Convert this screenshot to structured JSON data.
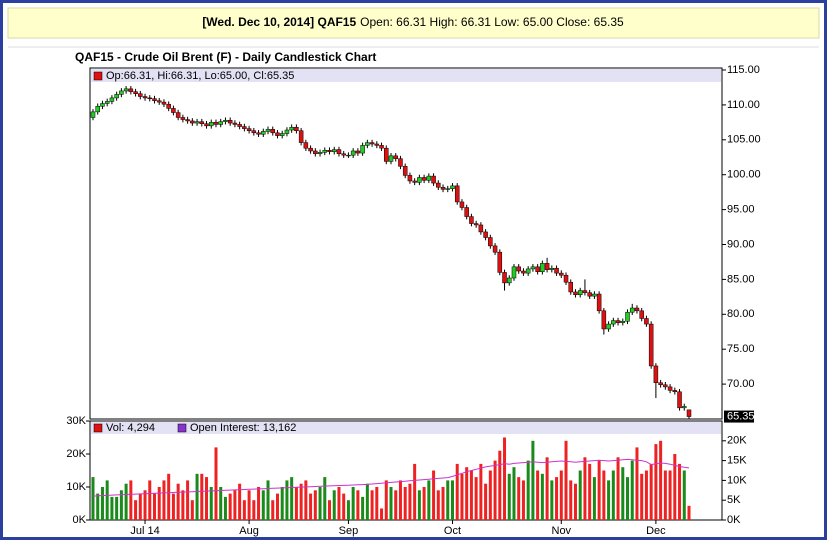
{
  "header": {
    "symbol": "[Wed. Dec 10, 2014] QAF15",
    "quote": "Open: 66.31 High: 66.31 Low: 65.00 Close: 65.35"
  },
  "chart_data": [
    {
      "type": "candlestick",
      "title": "QAF15 - Crude Oil Brent (F) - Daily Candlestick Chart",
      "legend": "Op:66.31, Hi:66.31, Lo:65.00, Cl:65.35",
      "up_color": "#22cc22",
      "down_color": "#dd1111",
      "legend_color": "#dd1111",
      "open": [
        108.2,
        109.0,
        109.8,
        110.2,
        110.5,
        111.0,
        111.5,
        112.0,
        112.3,
        111.9,
        111.6,
        111.2,
        111.0,
        110.9,
        110.6,
        110.4,
        110.1,
        109.5,
        108.9,
        108.2,
        107.9,
        107.7,
        107.4,
        107.6,
        107.3,
        107.0,
        107.5,
        107.2,
        107.6,
        107.8,
        107.4,
        107.2,
        106.9,
        106.6,
        106.3,
        106.0,
        105.8,
        106.2,
        106.5,
        106.0,
        105.6,
        105.9,
        106.4,
        106.8,
        106.3,
        104.6,
        103.8,
        103.4,
        103.0,
        103.2,
        103.5,
        103.3,
        103.6,
        103.0,
        102.8,
        102.8,
        103.4,
        103.1,
        104.2,
        104.6,
        104.4,
        104.2,
        103.8,
        101.9,
        102.7,
        102.3,
        101.2,
        99.9,
        99.1,
        98.9,
        99.6,
        99.2,
        99.8,
        98.8,
        98.2,
        97.9,
        98.0,
        98.4,
        96.1,
        95.3,
        94.0,
        93.0,
        92.8,
        91.8,
        91.0,
        89.8,
        88.9,
        86.0,
        84.5,
        85.2,
        86.8,
        86.2,
        85.9,
        86.5,
        86.8,
        86.1,
        87.3,
        86.4,
        86.6,
        85.9,
        85.6,
        84.6,
        83.2,
        82.8,
        83.4,
        83.1,
        82.6,
        82.9,
        80.5,
        77.9,
        78.6,
        79.1,
        78.8,
        79.0,
        80.3,
        80.9,
        80.5,
        79.4,
        78.6,
        72.6,
        70.2,
        69.9,
        69.6,
        69.1,
        68.9,
        66.6,
        66.31
      ],
      "high": [
        109.4,
        110.2,
        110.6,
        110.9,
        111.4,
        111.9,
        112.4,
        112.7,
        112.7,
        112.3,
        112.0,
        111.6,
        111.4,
        111.3,
        111.0,
        110.8,
        110.5,
        109.9,
        109.3,
        108.6,
        108.3,
        108.1,
        108.0,
        108.0,
        107.7,
        107.9,
        107.9,
        108.0,
        108.2,
        108.2,
        107.8,
        107.6,
        107.3,
        107.0,
        106.7,
        106.4,
        106.6,
        106.9,
        106.9,
        106.4,
        106.3,
        106.8,
        107.2,
        107.2,
        106.7,
        105.0,
        104.2,
        103.8,
        103.6,
        103.9,
        103.9,
        104.0,
        104.0,
        103.4,
        103.2,
        103.8,
        103.8,
        104.6,
        105.0,
        105.0,
        104.8,
        104.6,
        104.2,
        103.1,
        103.1,
        102.7,
        101.6,
        100.3,
        99.5,
        100.0,
        100.0,
        100.2,
        100.2,
        99.2,
        98.6,
        98.4,
        98.8,
        98.8,
        96.5,
        95.7,
        94.4,
        93.4,
        93.2,
        92.2,
        91.4,
        90.2,
        89.3,
        86.4,
        85.6,
        87.2,
        87.2,
        86.6,
        86.9,
        87.2,
        87.2,
        87.7,
        88.1,
        87.0,
        87.0,
        86.3,
        86.0,
        85.0,
        83.6,
        83.8,
        85.0,
        83.5,
        83.3,
        83.3,
        80.9,
        79.0,
        79.5,
        79.5,
        79.4,
        80.7,
        81.5,
        81.3,
        80.9,
        79.8,
        79.0,
        73.0,
        70.6,
        70.3,
        70.0,
        69.5,
        69.3,
        67.2,
        66.31
      ],
      "low": [
        107.8,
        108.6,
        109.4,
        109.8,
        110.1,
        110.6,
        111.1,
        111.6,
        111.5,
        111.2,
        110.8,
        110.6,
        110.5,
        110.2,
        110.0,
        109.7,
        109.1,
        108.5,
        107.8,
        107.5,
        107.3,
        107.0,
        107.0,
        106.9,
        106.6,
        106.6,
        106.8,
        106.8,
        107.2,
        107.0,
        106.8,
        106.5,
        106.2,
        105.9,
        105.6,
        105.4,
        105.4,
        105.8,
        105.6,
        105.2,
        105.2,
        105.5,
        106.0,
        105.9,
        104.2,
        103.4,
        103.0,
        102.6,
        102.6,
        102.8,
        102.9,
        102.9,
        102.6,
        102.4,
        102.4,
        102.4,
        102.7,
        102.7,
        103.8,
        104.0,
        103.8,
        103.4,
        101.5,
        101.5,
        101.9,
        100.8,
        99.5,
        98.7,
        98.5,
        98.5,
        98.8,
        98.8,
        98.4,
        97.8,
        97.5,
        97.5,
        97.6,
        95.7,
        94.9,
        93.6,
        92.6,
        92.4,
        91.4,
        90.6,
        89.4,
        88.5,
        85.6,
        83.4,
        84.1,
        84.8,
        85.8,
        85.5,
        85.5,
        86.1,
        85.7,
        85.7,
        86.0,
        86.0,
        85.5,
        85.2,
        84.2,
        82.8,
        82.4,
        82.4,
        82.7,
        82.2,
        82.2,
        80.1,
        77.1,
        77.5,
        78.2,
        78.4,
        78.4,
        78.6,
        79.9,
        80.1,
        79.0,
        78.2,
        72.2,
        68.0,
        69.5,
        69.2,
        68.7,
        68.5,
        66.2,
        66.2,
        65.0
      ],
      "close": [
        109.0,
        109.8,
        110.2,
        110.5,
        111.0,
        111.5,
        112.0,
        112.3,
        111.9,
        111.6,
        111.2,
        111.0,
        110.9,
        110.6,
        110.4,
        110.1,
        109.5,
        108.9,
        108.2,
        107.9,
        107.7,
        107.4,
        107.6,
        107.3,
        107.0,
        107.5,
        107.2,
        107.6,
        107.8,
        107.4,
        107.2,
        106.9,
        106.6,
        106.3,
        106.0,
        105.8,
        106.2,
        106.5,
        106.0,
        105.6,
        105.9,
        106.4,
        106.8,
        106.3,
        104.6,
        103.8,
        103.4,
        103.0,
        103.2,
        103.5,
        103.3,
        103.6,
        103.0,
        102.8,
        102.8,
        103.4,
        103.1,
        104.2,
        104.6,
        104.4,
        104.2,
        103.8,
        101.9,
        102.7,
        102.3,
        101.2,
        99.9,
        99.1,
        98.9,
        99.6,
        99.2,
        99.8,
        98.8,
        98.2,
        97.9,
        98.0,
        98.4,
        96.1,
        95.3,
        94.0,
        93.0,
        92.8,
        91.8,
        91.0,
        89.8,
        88.9,
        86.0,
        84.5,
        85.2,
        86.8,
        86.2,
        85.9,
        86.5,
        86.8,
        86.1,
        87.3,
        86.4,
        86.6,
        85.9,
        85.6,
        84.6,
        83.2,
        82.8,
        83.4,
        83.1,
        82.6,
        82.9,
        80.5,
        77.9,
        78.6,
        79.1,
        78.8,
        79.0,
        80.3,
        80.9,
        80.5,
        79.4,
        78.6,
        72.6,
        70.2,
        69.9,
        69.6,
        69.1,
        68.9,
        66.6,
        66.8,
        65.35
      ],
      "ylim": [
        65,
        115
      ],
      "yticks": [
        {
          "value": 70,
          "label": "70.00"
        },
        {
          "value": 75,
          "label": "75.00"
        },
        {
          "value": 80,
          "label": "80.00"
        },
        {
          "value": 85,
          "label": "85.00"
        },
        {
          "value": 90,
          "label": "90.00"
        },
        {
          "value": 95,
          "label": "95.00"
        },
        {
          "value": 100,
          "label": "100.00"
        },
        {
          "value": 105,
          "label": "105.00"
        },
        {
          "value": 110,
          "label": "110.00"
        },
        {
          "value": 115,
          "label": "115.00"
        }
      ]
    },
    {
      "type": "bar",
      "categories": [
        null,
        null,
        null,
        null,
        null,
        null,
        null,
        null,
        null,
        null,
        null,
        "Jul 14",
        null,
        null,
        null,
        null,
        null,
        null,
        null,
        null,
        null,
        null,
        null,
        null,
        null,
        null,
        null,
        null,
        null,
        null,
        null,
        null,
        null,
        "Aug",
        null,
        null,
        null,
        null,
        null,
        null,
        null,
        null,
        null,
        null,
        null,
        null,
        null,
        null,
        null,
        null,
        null,
        null,
        null,
        null,
        "Sep",
        null,
        null,
        null,
        null,
        null,
        null,
        null,
        null,
        null,
        null,
        null,
        null,
        null,
        null,
        null,
        null,
        null,
        null,
        null,
        null,
        null,
        "Oct",
        null,
        null,
        null,
        null,
        null,
        null,
        null,
        null,
        null,
        null,
        null,
        null,
        null,
        null,
        null,
        null,
        null,
        null,
        null,
        null,
        null,
        null,
        "Nov",
        null,
        null,
        null,
        null,
        null,
        null,
        null,
        null,
        null,
        null,
        null,
        null,
        null,
        null,
        null,
        null,
        null,
        null,
        null,
        "Dec",
        null,
        null,
        null,
        null,
        null,
        null,
        null
      ],
      "series": [
        {
          "name": "Vol: 4,294",
          "color": "#dd1111",
          "up_color": "#1a8a1a",
          "down_color": "#ee2222",
          "values": [
            13000,
            8000,
            10000,
            12000,
            7000,
            7000,
            9000,
            11000,
            12000,
            6000,
            8000,
            9000,
            12000,
            8000,
            10000,
            12000,
            14000,
            8000,
            11000,
            9000,
            12000,
            6000,
            14000,
            14000,
            13000,
            10000,
            22000,
            10000,
            7000,
            8000,
            9000,
            11000,
            6000,
            9000,
            6000,
            10000,
            9000,
            12000,
            6000,
            8000,
            10000,
            12000,
            13000,
            10000,
            11000,
            12000,
            8000,
            9000,
            10000,
            13000,
            6000,
            9000,
            10000,
            8000,
            6000,
            10000,
            9000,
            7000,
            11000,
            9000,
            10000,
            3500,
            12000,
            10000,
            9000,
            12000,
            10000,
            11000,
            17000,
            9000,
            10000,
            12000,
            15000,
            9000,
            10000,
            12000,
            12000,
            17000,
            14000,
            16000,
            15000,
            13000,
            17000,
            11000,
            15000,
            18000,
            21000,
            25000,
            14000,
            16000,
            13000,
            12000,
            18000,
            24000,
            15000,
            14000,
            19000,
            12000,
            13000,
            15000,
            24000,
            12000,
            11000,
            15000,
            19000,
            17000,
            13000,
            18000,
            15000,
            12000,
            15000,
            19000,
            16000,
            13000,
            18000,
            22000,
            14000,
            15000,
            17000,
            23000,
            24000,
            15000,
            15000,
            20000,
            17000,
            15000,
            4294
          ]
        },
        {
          "name": "Open Interest: 13,162",
          "color": "#cc33cc",
          "legend_color": "#8833cc",
          "axis": "y2",
          "values": [
            6000,
            6100,
            6150,
            6200,
            6300,
            6350,
            6400,
            6450,
            6500,
            6550,
            6600,
            6650,
            6700,
            6750,
            6800,
            6850,
            6900,
            6950,
            7000,
            7050,
            7100,
            7150,
            7200,
            7250,
            7300,
            7350,
            7400,
            7450,
            7500,
            7550,
            7600,
            7650,
            7700,
            7750,
            7800,
            7850,
            7900,
            7950,
            8000,
            8050,
            8100,
            8150,
            8200,
            8250,
            8300,
            8350,
            8400,
            8450,
            8500,
            8550,
            8600,
            8650,
            8700,
            8750,
            8800,
            8850,
            8900,
            8950,
            9000,
            9100,
            9200,
            9300,
            9400,
            9500,
            9600,
            9700,
            9800,
            9900,
            10000,
            10100,
            10200,
            10300,
            10400,
            10500,
            10600,
            10700,
            11000,
            11400,
            11800,
            12200,
            12500,
            12800,
            13100,
            13400,
            13600,
            13800,
            14000,
            14200,
            14100,
            14300,
            14400,
            14500,
            14600,
            14700,
            14600,
            14500,
            14600,
            14700,
            14800,
            14900,
            14800,
            14700,
            14600,
            14700,
            14800,
            14900,
            15000,
            15100,
            15000,
            14900,
            15000,
            15100,
            15200,
            15300,
            15200,
            15100,
            15000,
            14700,
            14000,
            14200,
            14400,
            14300,
            14100,
            13800,
            13500,
            13300,
            13162
          ]
        }
      ],
      "ylim": [
        0,
        30000
      ],
      "yticks": [
        {
          "value": 0,
          "label": "0K"
        },
        {
          "value": 10000,
          "label": "10K"
        },
        {
          "value": 20000,
          "label": "20K"
        },
        {
          "value": 30000,
          "label": "30K"
        }
      ],
      "y2lim": [
        0,
        25000
      ],
      "y2ticks": [
        {
          "value": 0,
          "label": "0K"
        },
        {
          "value": 5000,
          "label": "5K"
        },
        {
          "value": 10000,
          "label": "10K"
        },
        {
          "value": 15000,
          "label": "15K"
        },
        {
          "value": 20000,
          "label": "20K"
        }
      ]
    }
  ]
}
